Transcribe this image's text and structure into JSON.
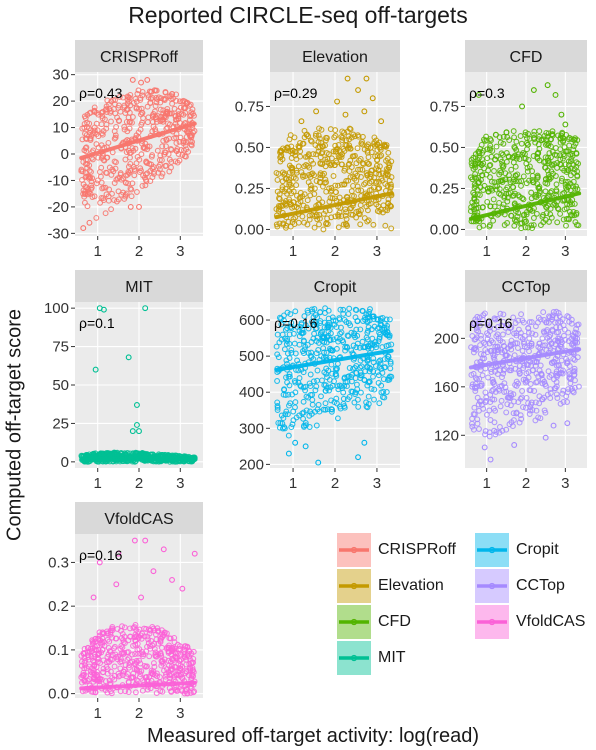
{
  "title": "Reported CIRCLE-seq off-targets",
  "xlabel": "Measured off-target activity: log(read)",
  "ylabel": "Computed off-target score",
  "colors": {
    "CRISPRoff": "#F8766D",
    "Elevation": "#C49A00",
    "CFD": "#53B400",
    "MIT": "#00C094",
    "Cropit": "#00B6EB",
    "CCTop": "#A58AFF",
    "VfoldCAS": "#FB61D7"
  },
  "legend": [
    "CRISPRoff",
    "Elevation",
    "CFD",
    "MIT",
    "Cropit",
    "CCTop",
    "VfoldCAS"
  ],
  "chart_data": [
    {
      "type": "scatter",
      "title": "CRISPRoff",
      "annotation": "ρ=0.43",
      "xlim": [
        0.45,
        3.55
      ],
      "ylim": [
        -31,
        31
      ],
      "xticks": [
        1,
        2,
        3
      ],
      "yticks": [
        -30,
        -20,
        -10,
        0,
        10,
        20,
        30
      ],
      "cloud": {
        "x": [
          0.6,
          3.35
        ],
        "lower": [
          [
            0.6,
            -18
          ],
          [
            1.0,
            -25
          ],
          [
            1.5,
            -20
          ],
          [
            2.0,
            -14
          ],
          [
            2.5,
            -10
          ],
          [
            3.0,
            -5
          ],
          [
            3.35,
            2
          ]
        ],
        "upper": [
          [
            0.6,
            14
          ],
          [
            1.0,
            19
          ],
          [
            1.5,
            22
          ],
          [
            2.0,
            25
          ],
          [
            2.5,
            25
          ],
          [
            3.0,
            22
          ],
          [
            3.35,
            18
          ]
        ]
      },
      "outliers": [
        [
          0.65,
          -28
        ],
        [
          0.8,
          -26
        ],
        [
          1.8,
          -20
        ],
        [
          2.0,
          -20
        ],
        [
          1.85,
          28
        ],
        [
          2.2,
          28
        ],
        [
          2.05,
          27
        ]
      ],
      "trend": [
        [
          0.6,
          -1.5
        ],
        [
          3.35,
          11.5
        ]
      ]
    },
    {
      "type": "scatter",
      "title": "Elevation",
      "annotation": "ρ=0.29",
      "xlim": [
        0.45,
        3.55
      ],
      "ylim": [
        -0.04,
        0.96
      ],
      "xticks": [
        1,
        2,
        3
      ],
      "yticks": [
        0,
        0.25,
        0.5,
        0.75
      ],
      "cloud": {
        "x": [
          0.6,
          3.35
        ],
        "lower": [
          [
            0.6,
            0.0
          ],
          [
            3.35,
            0.0
          ]
        ],
        "upper": [
          [
            0.6,
            0.45
          ],
          [
            1.0,
            0.6
          ],
          [
            1.5,
            0.62
          ],
          [
            2.0,
            0.62
          ],
          [
            2.5,
            0.62
          ],
          [
            3.0,
            0.58
          ],
          [
            3.35,
            0.5
          ]
        ]
      },
      "outliers": [
        [
          2.3,
          0.92
        ],
        [
          2.75,
          0.92
        ],
        [
          2.55,
          0.85
        ],
        [
          2.05,
          0.78
        ],
        [
          2.9,
          0.8
        ],
        [
          1.55,
          0.72
        ],
        [
          2.25,
          0.7
        ],
        [
          2.7,
          0.72
        ],
        [
          3.1,
          0.66
        ],
        [
          1.2,
          0.66
        ]
      ],
      "trend": [
        [
          0.6,
          0.075
        ],
        [
          3.35,
          0.22
        ]
      ]
    },
    {
      "type": "scatter",
      "title": "CFD",
      "annotation": "ρ=0.3",
      "xlim": [
        0.45,
        3.55
      ],
      "ylim": [
        -0.04,
        0.96
      ],
      "xticks": [
        1,
        2,
        3
      ],
      "yticks": [
        0,
        0.25,
        0.5,
        0.75
      ],
      "cloud": {
        "x": [
          0.6,
          3.35
        ],
        "lower": [
          [
            0.6,
            0.0
          ],
          [
            3.35,
            0.0
          ]
        ],
        "upper": [
          [
            0.6,
            0.42
          ],
          [
            1.0,
            0.58
          ],
          [
            1.5,
            0.6
          ],
          [
            2.0,
            0.6
          ],
          [
            2.5,
            0.6
          ],
          [
            3.0,
            0.6
          ],
          [
            3.35,
            0.55
          ]
        ]
      },
      "outliers": [
        [
          0.8,
          0.82
        ],
        [
          2.2,
          0.85
        ],
        [
          2.55,
          0.88
        ],
        [
          2.75,
          0.82
        ],
        [
          1.9,
          0.75
        ],
        [
          2.9,
          0.7
        ],
        [
          3.0,
          0.64
        ]
      ],
      "trend": [
        [
          0.6,
          0.065
        ],
        [
          3.35,
          0.22
        ]
      ]
    },
    {
      "type": "scatter",
      "title": "MIT",
      "annotation": "ρ=0.1",
      "xlim": [
        0.45,
        3.55
      ],
      "ylim": [
        -4,
        104
      ],
      "xticks": [
        1,
        2,
        3
      ],
      "yticks": [
        0,
        25,
        50,
        75,
        100
      ],
      "cloud": {
        "x": [
          0.6,
          3.35
        ],
        "lower": [
          [
            0.6,
            0.0
          ],
          [
            3.35,
            0.0
          ]
        ],
        "upper": [
          [
            0.6,
            4
          ],
          [
            1.0,
            6
          ],
          [
            2.0,
            6
          ],
          [
            3.0,
            4
          ],
          [
            3.35,
            3
          ]
        ]
      },
      "outliers": [
        [
          1.05,
          100
        ],
        [
          1.15,
          99
        ],
        [
          2.15,
          100
        ],
        [
          0.95,
          60
        ],
        [
          1.75,
          68
        ],
        [
          1.95,
          37
        ],
        [
          1.95,
          24
        ],
        [
          1.85,
          20
        ],
        [
          2.0,
          20
        ]
      ],
      "trend": [
        [
          0.6,
          1.5
        ],
        [
          3.35,
          2.0
        ]
      ]
    },
    {
      "type": "scatter",
      "title": "Cropit",
      "annotation": "ρ=0.16",
      "xlim": [
        0.45,
        3.55
      ],
      "ylim": [
        190,
        650
      ],
      "xticks": [
        1,
        2,
        3
      ],
      "yticks": [
        200,
        300,
        400,
        500,
        600
      ],
      "cloud": {
        "x": [
          0.6,
          3.35
        ],
        "lower": [
          [
            0.6,
            270
          ],
          [
            1.0,
            280
          ],
          [
            1.5,
            300
          ],
          [
            2.0,
            320
          ],
          [
            2.5,
            340
          ],
          [
            3.0,
            360
          ],
          [
            3.35,
            400
          ]
        ],
        "upper": [
          [
            0.6,
            600
          ],
          [
            1.0,
            635
          ],
          [
            2.0,
            635
          ],
          [
            3.0,
            630
          ],
          [
            3.35,
            600
          ]
        ]
      },
      "outliers": [
        [
          0.9,
          230
        ],
        [
          1.6,
          205
        ],
        [
          1.3,
          250
        ],
        [
          2.55,
          220
        ],
        [
          2.7,
          260
        ],
        [
          1.05,
          260
        ]
      ],
      "trend": [
        [
          0.6,
          462
        ],
        [
          3.35,
          515
        ]
      ]
    },
    {
      "type": "scatter",
      "title": "CCTop",
      "annotation": "ρ=0.16",
      "xlim": [
        0.45,
        3.55
      ],
      "ylim": [
        93,
        230
      ],
      "xticks": [
        1,
        2,
        3
      ],
      "yticks": [
        120,
        160,
        200
      ],
      "cloud": {
        "x": [
          0.6,
          3.35
        ],
        "lower": [
          [
            0.6,
            125
          ],
          [
            1.0,
            118
          ],
          [
            1.5,
            122
          ],
          [
            2.0,
            128
          ],
          [
            2.5,
            135
          ],
          [
            3.0,
            145
          ],
          [
            3.35,
            160
          ]
        ],
        "upper": [
          [
            0.6,
            215
          ],
          [
            1.0,
            222
          ],
          [
            2.0,
            222
          ],
          [
            3.0,
            222
          ],
          [
            3.35,
            215
          ]
        ]
      },
      "outliers": [
        [
          1.1,
          100
        ],
        [
          0.95,
          110
        ],
        [
          2.5,
          118
        ],
        [
          2.7,
          128
        ],
        [
          3.05,
          130
        ],
        [
          1.7,
          112
        ]
      ],
      "trend": [
        [
          0.6,
          176
        ],
        [
          3.35,
          191
        ]
      ]
    },
    {
      "type": "scatter",
      "title": "VfoldCAS",
      "annotation": "ρ=0.16",
      "xlim": [
        0.45,
        3.55
      ],
      "ylim": [
        -0.01,
        0.365
      ],
      "xticks": [
        1,
        2,
        3
      ],
      "yticks": [
        0,
        0.1,
        0.2,
        0.3
      ],
      "cloud": {
        "x": [
          0.6,
          3.35
        ],
        "lower": [
          [
            0.6,
            0.0
          ],
          [
            3.35,
            0.0
          ]
        ],
        "upper": [
          [
            0.6,
            0.1
          ],
          [
            1.0,
            0.14
          ],
          [
            1.5,
            0.16
          ],
          [
            2.0,
            0.16
          ],
          [
            2.5,
            0.15
          ],
          [
            3.0,
            0.12
          ],
          [
            3.35,
            0.1
          ]
        ]
      },
      "outliers": [
        [
          1.9,
          0.35
        ],
        [
          2.15,
          0.35
        ],
        [
          2.6,
          0.33
        ],
        [
          3.35,
          0.32
        ],
        [
          1.5,
          0.32
        ],
        [
          1.05,
          0.3
        ],
        [
          2.35,
          0.28
        ],
        [
          1.45,
          0.25
        ],
        [
          2.8,
          0.26
        ],
        [
          0.9,
          0.22
        ],
        [
          3.05,
          0.24
        ],
        [
          2.05,
          0.22
        ]
      ],
      "trend": [
        [
          0.6,
          0.012
        ],
        [
          3.35,
          0.025
        ]
      ]
    }
  ]
}
